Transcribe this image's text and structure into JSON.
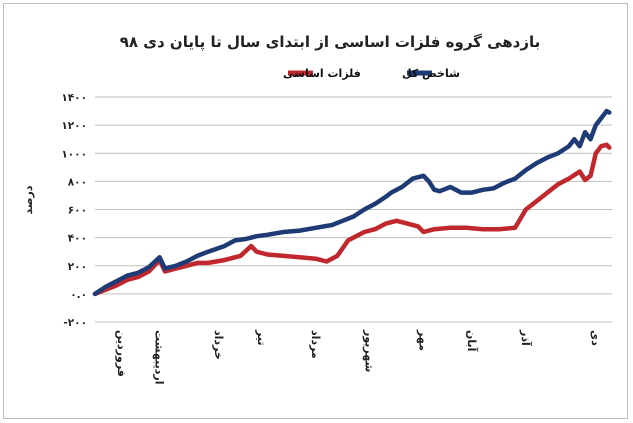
{
  "chart_data": {
    "type": "line",
    "title": "بازدهی گروه فلزات اساسی از ابتدای سال تا پایان دی ۹۸",
    "ylabel": "درصد",
    "xlabel": "",
    "ylim": [
      -200,
      1400
    ],
    "yticks": [
      {
        "value": 1400,
        "label": "۱۴۰۰"
      },
      {
        "value": 1200,
        "label": "۱۲۰۰"
      },
      {
        "value": 1000,
        "label": "۱۰۰۰"
      },
      {
        "value": 800,
        "label": "۸۰۰"
      },
      {
        "value": 600,
        "label": "۶۰۰"
      },
      {
        "value": 400,
        "label": "۴۰۰"
      },
      {
        "value": 200,
        "label": "۲۰۰"
      },
      {
        "value": 0,
        "label": "۰.۰"
      },
      {
        "value": -200,
        "label": "-۲۰۰"
      }
    ],
    "grid": true,
    "legend_position": "top",
    "categories": [
      "فروردین",
      "اردیبهشت",
      "خرداد",
      "تیر",
      "مرداد",
      "شهریور",
      "مهر",
      "آبان",
      "آذر",
      "دی"
    ],
    "category_x": [
      0.5,
      1.2,
      2.3,
      3.1,
      4.1,
      5.1,
      6.1,
      7.0,
      8.0,
      9.3
    ],
    "x_range": [
      0,
      9.6
    ],
    "series": [
      {
        "name": "شاخص کل",
        "color": "#1f3b75",
        "x": [
          0,
          0.2,
          0.4,
          0.6,
          0.8,
          1.0,
          1.2,
          1.3,
          1.5,
          1.7,
          1.9,
          2.1,
          2.4,
          2.6,
          2.8,
          3.0,
          3.2,
          3.5,
          3.8,
          4.1,
          4.4,
          4.6,
          4.8,
          5.0,
          5.2,
          5.4,
          5.5,
          5.7,
          5.9,
          6.1,
          6.2,
          6.3,
          6.4,
          6.6,
          6.8,
          7.0,
          7.2,
          7.4,
          7.6,
          7.8,
          8.0,
          8.2,
          8.4,
          8.6,
          8.8,
          8.9,
          9.0,
          9.1,
          9.2,
          9.3,
          9.4,
          9.5,
          9.55
        ],
        "values": [
          0,
          50,
          90,
          130,
          150,
          190,
          260,
          180,
          200,
          230,
          270,
          300,
          340,
          380,
          390,
          410,
          420,
          440,
          450,
          470,
          490,
          520,
          550,
          600,
          640,
          690,
          720,
          760,
          820,
          840,
          800,
          740,
          730,
          760,
          720,
          720,
          740,
          750,
          790,
          820,
          880,
          930,
          970,
          1000,
          1050,
          1100,
          1050,
          1150,
          1100,
          1200,
          1250,
          1300,
          1290
        ]
      },
      {
        "name": "فلزات اساسی",
        "color": "#c0282d",
        "x": [
          0,
          0.2,
          0.4,
          0.6,
          0.8,
          1.0,
          1.2,
          1.3,
          1.5,
          1.7,
          1.9,
          2.1,
          2.4,
          2.7,
          2.9,
          3.0,
          3.2,
          3.5,
          3.8,
          4.1,
          4.3,
          4.5,
          4.7,
          5.0,
          5.2,
          5.4,
          5.6,
          5.8,
          6.0,
          6.1,
          6.3,
          6.6,
          6.9,
          7.2,
          7.5,
          7.8,
          8.0,
          8.2,
          8.4,
          8.6,
          8.8,
          9.0,
          9.1,
          9.2,
          9.3,
          9.4,
          9.5,
          9.55
        ],
        "values": [
          0,
          30,
          60,
          100,
          120,
          160,
          240,
          160,
          180,
          200,
          220,
          220,
          240,
          270,
          340,
          300,
          280,
          270,
          260,
          250,
          230,
          270,
          380,
          440,
          460,
          500,
          520,
          500,
          480,
          440,
          460,
          470,
          470,
          460,
          460,
          470,
          600,
          660,
          720,
          780,
          820,
          870,
          810,
          840,
          1000,
          1050,
          1060,
          1040
        ]
      }
    ]
  }
}
